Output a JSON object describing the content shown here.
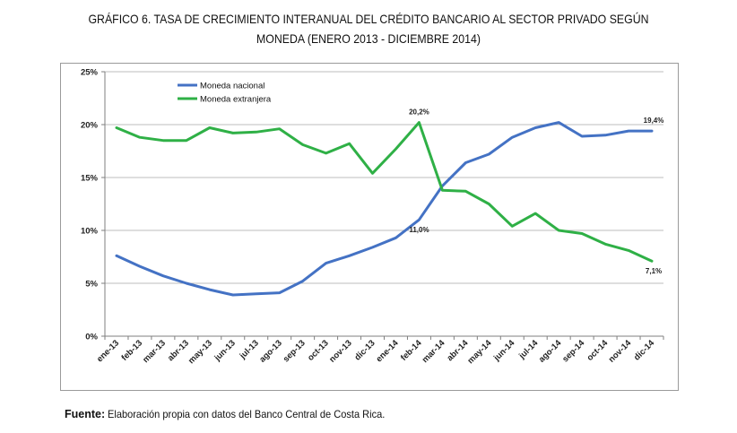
{
  "title_line1": "GRÁFICO 6. TASA DE CRECIMIENTO INTERANUAL DEL CRÉDITO BANCARIO AL SECTOR PRIVADO SEGÚN",
  "title_line2": "MONEDA (ENERO 2013 - DICIEMBRE 2014)",
  "footer": {
    "label": "Fuente:",
    "text": "Elaboración propia con datos del Banco Central de Costa Rica."
  },
  "chart_data": {
    "type": "line",
    "categories": [
      "ene-13",
      "feb-13",
      "mar-13",
      "abr-13",
      "may-13",
      "jun-13",
      "jul-13",
      "ago-13",
      "sep-13",
      "oct-13",
      "nov-13",
      "dic-13",
      "ene-14",
      "feb-14",
      "mar-14",
      "abr-14",
      "may-14",
      "jun-14",
      "jul-14",
      "ago-14",
      "sep-14",
      "oct-14",
      "nov-14",
      "dic-14"
    ],
    "series": [
      {
        "name": "Moneda nacional",
        "color": "#4472c4",
        "values": [
          7.6,
          6.6,
          5.7,
          5.0,
          4.4,
          3.9,
          4.0,
          4.1,
          5.2,
          6.9,
          7.6,
          8.4,
          9.3,
          11.0,
          14.2,
          16.4,
          17.2,
          18.8,
          19.7,
          20.2,
          18.9,
          19.0,
          19.4,
          19.4
        ]
      },
      {
        "name": "Moneda extranjera",
        "color": "#2fb046",
        "values": [
          19.7,
          18.8,
          18.5,
          18.5,
          19.7,
          19.2,
          19.3,
          19.6,
          18.1,
          17.3,
          18.2,
          15.4,
          17.7,
          20.2,
          13.8,
          13.7,
          12.5,
          10.4,
          11.6,
          10.0,
          9.7,
          8.7,
          8.1,
          7.1
        ]
      }
    ],
    "y_ticks": [
      "0%",
      "5%",
      "10%",
      "15%",
      "20%",
      "25%"
    ],
    "ylim": [
      0,
      25
    ],
    "annotations": [
      {
        "series": 1,
        "index": 13,
        "text": "20,2%"
      },
      {
        "series": 0,
        "index": 13,
        "text": "11,0%"
      },
      {
        "series": 0,
        "index": 23,
        "text": "19,4%"
      },
      {
        "series": 1,
        "index": 23,
        "text": "7,1%"
      }
    ],
    "grid": true,
    "legend_position": "top-left"
  }
}
